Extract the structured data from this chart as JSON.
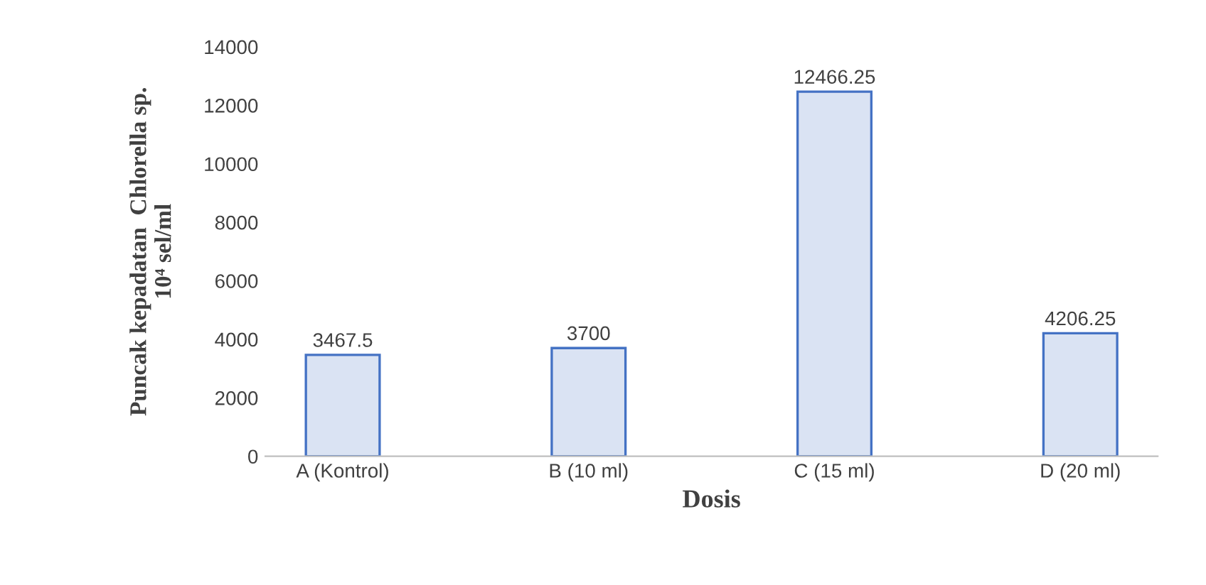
{
  "chart_data": {
    "type": "bar",
    "categories": [
      "A (Kontrol)",
      "B (10 ml)",
      "C (15 ml)",
      "D (20 ml)"
    ],
    "values": [
      3467.5,
      3700,
      12466.25,
      4206.25
    ],
    "color": "#4472c4",
    "xlabel": "Dosis",
    "ylabel": "Puncak kepadatan  Chlorella sp.\n10⁴ sel/ml",
    "ylim": [
      0,
      14000
    ],
    "yticks": [
      0,
      2000,
      4000,
      6000,
      8000,
      10000,
      12000,
      14000
    ],
    "data_labels": true,
    "grid": false,
    "legend": false
  }
}
